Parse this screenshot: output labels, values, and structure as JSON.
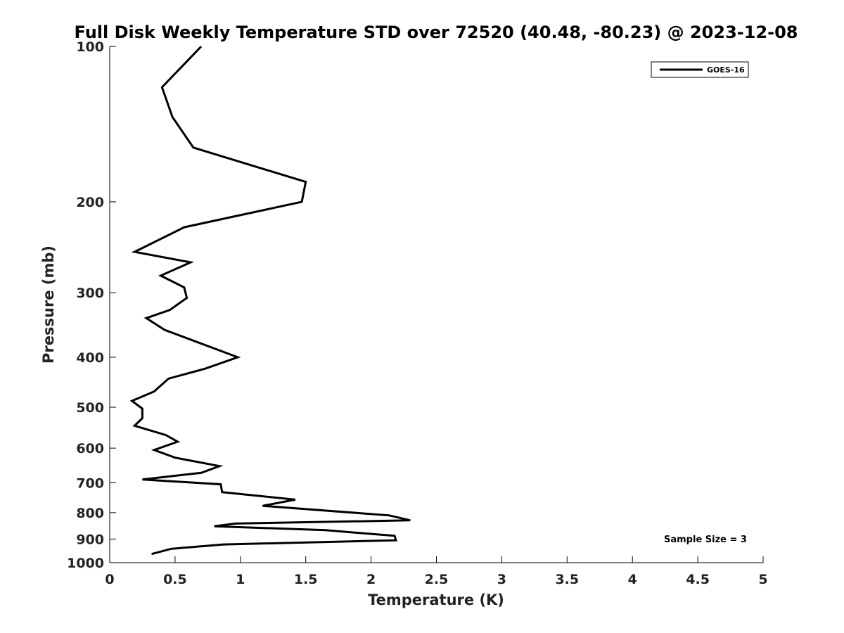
{
  "chart_data": {
    "type": "line",
    "title": "Full Disk Weekly Temperature STD over 72520 (40.48, -80.23) @ 2023-12-08",
    "xlabel": "Temperature (K)",
    "ylabel": "Pressure (mb)",
    "xlim": [
      0,
      5
    ],
    "ylim": [
      100,
      1000
    ],
    "y_scale": "log",
    "y_reversed": true,
    "x_ticks": [
      0,
      0.5,
      1,
      1.5,
      2,
      2.5,
      3,
      3.5,
      4,
      4.5,
      5
    ],
    "x_tick_labels": [
      "0",
      "0.5",
      "1",
      "1.5",
      "2",
      "2.5",
      "3",
      "3.5",
      "4",
      "4.5",
      "5"
    ],
    "y_ticks": [
      100,
      200,
      300,
      400,
      500,
      600,
      700,
      800,
      900,
      1000
    ],
    "y_tick_labels": [
      "100",
      "200",
      "300",
      "400",
      "500",
      "600",
      "700",
      "800",
      "900",
      "1000"
    ],
    "grid": false,
    "legend_position": "top-right",
    "series": [
      {
        "name": "GOES-16",
        "color": "#000000",
        "x": [
          0.7,
          0.4,
          0.48,
          0.64,
          1.5,
          1.47,
          0.57,
          0.19,
          0.62,
          0.39,
          0.57,
          0.59,
          0.46,
          0.28,
          0.42,
          0.98,
          0.73,
          0.45,
          0.34,
          0.17,
          0.25,
          0.25,
          0.19,
          0.43,
          0.52,
          0.34,
          0.5,
          0.84,
          0.7,
          0.25,
          0.85,
          0.86,
          1.42,
          1.17,
          2.14,
          2.3,
          0.96,
          0.8,
          1.65,
          2.18,
          2.19,
          0.87,
          0.47,
          0.32
        ],
        "y": [
          100,
          120,
          137,
          157,
          183,
          200,
          224,
          250,
          262,
          278,
          293,
          307,
          324,
          336,
          354,
          400,
          421,
          440,
          466,
          486,
          503,
          525,
          543,
          566,
          583,
          605,
          626,
          650,
          670,
          690,
          705,
          730,
          755,
          776,
          810,
          828,
          840,
          850,
          865,
          887,
          905,
          922,
          940,
          962
        ]
      }
    ],
    "annotations": [
      "Sample Size = 3"
    ]
  }
}
